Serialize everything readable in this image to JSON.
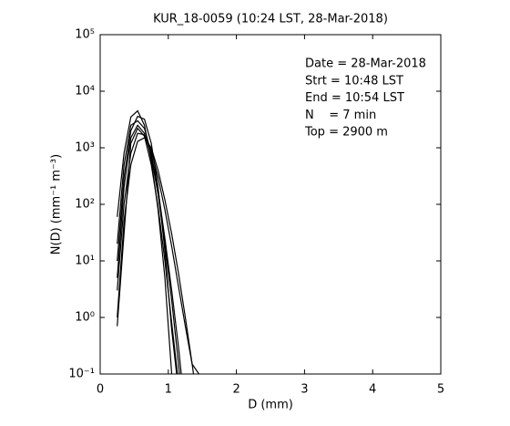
{
  "chart_data": {
    "type": "line",
    "title": "KUR_18-0059 (10:24 LST, 28-Mar-2018)",
    "xlabel": "D (mm)",
    "ylabel": "N(D) (mm⁻¹ m⁻³)",
    "annotations": [
      "Date = 28-Mar-2018",
      "Strt = 10:48 LST",
      "End = 10:54 LST",
      "N    = 7 min",
      "Top = 2900 m"
    ],
    "x": [
      0.25,
      0.35,
      0.45,
      0.55,
      0.65,
      0.75,
      0.85,
      0.95,
      1.05,
      1.15,
      1.25,
      1.35,
      1.45
    ],
    "series": [
      {
        "color": "#000000",
        "values": [
          60,
          800,
          3500,
          4500,
          2500,
          600,
          80,
          5,
          0.1,
          null,
          null,
          null,
          null
        ]
      },
      {
        "color": "#000000",
        "values": [
          10,
          300,
          2000,
          3600,
          3200,
          1200,
          200,
          15,
          0.6,
          0.05,
          null,
          null,
          null
        ]
      },
      {
        "color": "#000000",
        "values": [
          3,
          100,
          800,
          1800,
          1700,
          900,
          300,
          80,
          18,
          3.5,
          0.7,
          0.15,
          0.1
        ]
      },
      {
        "color": "#000000",
        "values": [
          1,
          50,
          500,
          1300,
          1500,
          1000,
          400,
          120,
          30,
          6,
          1,
          0.15,
          0.02
        ]
      },
      {
        "color": "#000000",
        "values": [
          0.7,
          30,
          1200,
          2200,
          1600,
          500,
          90,
          10,
          0.8,
          0.07,
          null,
          null,
          null
        ]
      },
      {
        "color": "#000000",
        "values": [
          5,
          200,
          1500,
          2500,
          1800,
          700,
          150,
          20,
          2,
          0.15,
          0.01,
          null,
          null
        ]
      },
      {
        "color": "#000000",
        "values": [
          20,
          500,
          2500,
          3000,
          2200,
          800,
          180,
          25,
          3,
          0.3,
          0.02,
          null,
          null
        ]
      }
    ],
    "xlim": [
      0,
      5
    ],
    "xticks": [
      0,
      1,
      2,
      3,
      4,
      5
    ],
    "ylim": [
      0.1,
      100000
    ],
    "ylog": true,
    "yticks": [
      {
        "value": 0.1,
        "label": "10⁻¹"
      },
      {
        "value": 1,
        "label": "10⁰"
      },
      {
        "value": 10,
        "label": "10¹"
      },
      {
        "value": 100,
        "label": "10²"
      },
      {
        "value": 1000,
        "label": "10³"
      },
      {
        "value": 10000,
        "label": "10⁴"
      },
      {
        "value": 100000,
        "label": "10⁵"
      }
    ]
  }
}
